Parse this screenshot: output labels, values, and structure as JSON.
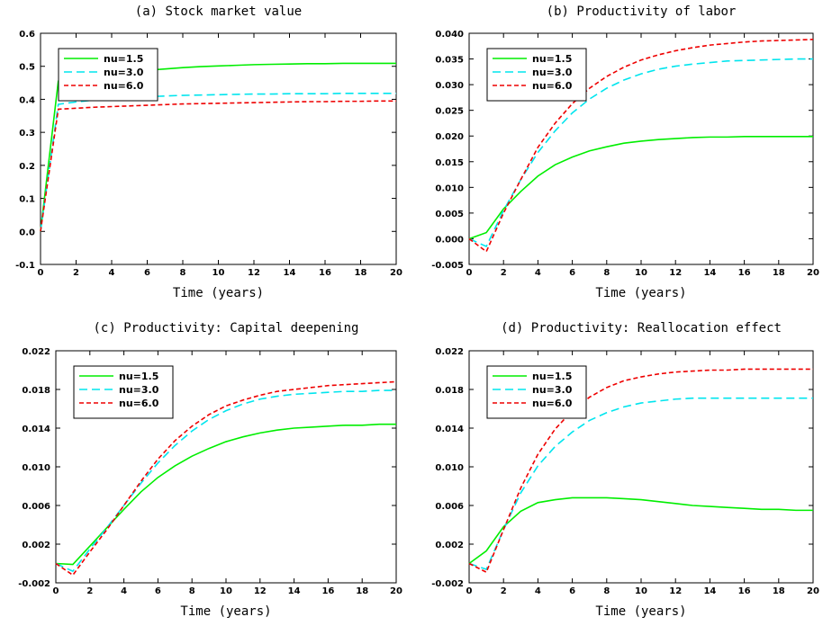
{
  "chart_data": [
    {
      "type": "line",
      "title": "(a) Stock market value",
      "xlabel": "Time (years)",
      "ylabel": "",
      "xlim": [
        0,
        20
      ],
      "ylim": [
        -0.1,
        0.6
      ],
      "xticks": [
        0,
        2,
        4,
        6,
        8,
        10,
        12,
        14,
        16,
        18,
        20
      ],
      "xtick_labels": [
        "0",
        "2",
        "4",
        "6",
        "8",
        "10",
        "12",
        "14",
        "16",
        "18",
        "20"
      ],
      "yticks": [
        -0.1,
        0.0,
        0.1,
        0.2,
        0.3,
        0.4,
        0.5,
        0.6
      ],
      "ytick_labels": [
        "-0.1",
        "0.0",
        "0.1",
        "0.2",
        "0.3",
        "0.4",
        "0.5",
        "0.6"
      ],
      "grid": false,
      "legend_position": "top-left",
      "x": [
        0,
        1,
        2,
        3,
        4,
        5,
        6,
        7,
        8,
        9,
        10,
        11,
        12,
        13,
        14,
        15,
        16,
        17,
        18,
        19,
        20
      ],
      "series": [
        {
          "name": "nu=1.5",
          "color": "#00ee00",
          "dash": "solid",
          "values": [
            0.0,
            0.455,
            0.462,
            0.469,
            0.476,
            0.482,
            0.488,
            0.492,
            0.496,
            0.499,
            0.501,
            0.503,
            0.505,
            0.506,
            0.507,
            0.508,
            0.508,
            0.509,
            0.509,
            0.509,
            0.509
          ]
        },
        {
          "name": "nu=3.0",
          "color": "#00e5ee",
          "dash": "long",
          "values": [
            0.0,
            0.385,
            0.392,
            0.398,
            0.402,
            0.405,
            0.408,
            0.41,
            0.412,
            0.413,
            0.414,
            0.415,
            0.416,
            0.416,
            0.417,
            0.417,
            0.417,
            0.418,
            0.418,
            0.418,
            0.418
          ]
        },
        {
          "name": "nu=6.0",
          "color": "#ee0000",
          "dash": "short",
          "values": [
            0.0,
            0.37,
            0.373,
            0.376,
            0.378,
            0.38,
            0.382,
            0.384,
            0.386,
            0.387,
            0.388,
            0.389,
            0.39,
            0.391,
            0.392,
            0.393,
            0.393,
            0.394,
            0.394,
            0.395,
            0.395
          ]
        }
      ]
    },
    {
      "type": "line",
      "title": "(b) Productivity of labor",
      "xlabel": "Time (years)",
      "ylabel": "",
      "xlim": [
        0,
        20
      ],
      "ylim": [
        -0.005,
        0.04
      ],
      "xticks": [
        0,
        2,
        4,
        6,
        8,
        10,
        12,
        14,
        16,
        18,
        20
      ],
      "xtick_labels": [
        "0",
        "2",
        "4",
        "6",
        "8",
        "10",
        "12",
        "14",
        "16",
        "18",
        "20"
      ],
      "yticks": [
        -0.005,
        0.0,
        0.005,
        0.01,
        0.015,
        0.02,
        0.025,
        0.03,
        0.035,
        0.04
      ],
      "ytick_labels": [
        "-0.005",
        "0.000",
        "0.005",
        "0.010",
        "0.015",
        "0.020",
        "0.025",
        "0.030",
        "0.035",
        "0.040"
      ],
      "grid": false,
      "legend_position": "top-left",
      "x": [
        0,
        1,
        2,
        3,
        4,
        5,
        6,
        7,
        8,
        9,
        10,
        11,
        12,
        13,
        14,
        15,
        16,
        17,
        18,
        19,
        20
      ],
      "series": [
        {
          "name": "nu=1.5",
          "color": "#00ee00",
          "dash": "solid",
          "values": [
            0.0,
            0.0012,
            0.0058,
            0.0092,
            0.0122,
            0.0144,
            0.0159,
            0.0171,
            0.0179,
            0.0186,
            0.019,
            0.0193,
            0.0195,
            0.0197,
            0.0198,
            0.0198,
            0.0199,
            0.0199,
            0.0199,
            0.0199,
            0.0199
          ]
        },
        {
          "name": "nu=3.0",
          "color": "#00e5ee",
          "dash": "long",
          "values": [
            0.0,
            -0.0015,
            0.0055,
            0.0115,
            0.0168,
            0.021,
            0.0245,
            0.0272,
            0.0293,
            0.0309,
            0.0321,
            0.033,
            0.0336,
            0.034,
            0.0343,
            0.0346,
            0.0347,
            0.0348,
            0.0349,
            0.035,
            0.035
          ]
        },
        {
          "name": "nu=6.0",
          "color": "#ee0000",
          "dash": "short",
          "values": [
            0.0,
            -0.0025,
            0.005,
            0.0115,
            0.0178,
            0.0225,
            0.0263,
            0.0293,
            0.0316,
            0.0334,
            0.0348,
            0.0358,
            0.0366,
            0.0372,
            0.0377,
            0.038,
            0.0383,
            0.0385,
            0.0386,
            0.0387,
            0.0388
          ]
        }
      ]
    },
    {
      "type": "line",
      "title": "(c) Productivity: Capital deepening",
      "xlabel": "Time (years)",
      "ylabel": "",
      "xlim": [
        0,
        20
      ],
      "ylim": [
        -0.002,
        0.022
      ],
      "xticks": [
        0,
        2,
        4,
        6,
        8,
        10,
        12,
        14,
        16,
        18,
        20
      ],
      "xtick_labels": [
        "0",
        "2",
        "4",
        "6",
        "8",
        "10",
        "12",
        "14",
        "16",
        "18",
        "20"
      ],
      "yticks": [
        -0.002,
        0.002,
        0.006,
        0.01,
        0.014,
        0.018,
        0.022
      ],
      "ytick_labels": [
        "-0.002",
        "0.002",
        "0.006",
        "0.010",
        "0.014",
        "0.018",
        "0.022"
      ],
      "grid": false,
      "legend_position": "top-left",
      "x": [
        0,
        1,
        2,
        3,
        4,
        5,
        6,
        7,
        8,
        9,
        10,
        11,
        12,
        13,
        14,
        15,
        16,
        17,
        18,
        19,
        20
      ],
      "series": [
        {
          "name": "nu=1.5",
          "color": "#00ee00",
          "dash": "solid",
          "values": [
            0.0,
            -0.0001,
            0.0018,
            0.0037,
            0.0056,
            0.0074,
            0.0089,
            0.0101,
            0.0111,
            0.0119,
            0.0126,
            0.0131,
            0.0135,
            0.0138,
            0.014,
            0.0141,
            0.0142,
            0.0143,
            0.0143,
            0.0144,
            0.0144
          ]
        },
        {
          "name": "nu=3.0",
          "color": "#00e5ee",
          "dash": "long",
          "values": [
            0.0,
            -0.0008,
            0.0015,
            0.0037,
            0.006,
            0.0083,
            0.0104,
            0.0122,
            0.0137,
            0.0149,
            0.0158,
            0.0165,
            0.017,
            0.0173,
            0.0175,
            0.0176,
            0.0177,
            0.0178,
            0.0178,
            0.0179,
            0.0179
          ]
        },
        {
          "name": "nu=6.0",
          "color": "#ee0000",
          "dash": "short",
          "values": [
            0.0,
            -0.0012,
            0.0012,
            0.0035,
            0.006,
            0.0085,
            0.0108,
            0.0127,
            0.0142,
            0.0154,
            0.0163,
            0.0169,
            0.0174,
            0.0178,
            0.018,
            0.0182,
            0.0184,
            0.0185,
            0.0186,
            0.0187,
            0.0188
          ]
        }
      ]
    },
    {
      "type": "line",
      "title": "(d) Productivity: Reallocation effect",
      "xlabel": "Time (years)",
      "ylabel": "",
      "xlim": [
        0,
        20
      ],
      "ylim": [
        -0.002,
        0.022
      ],
      "xticks": [
        0,
        2,
        4,
        6,
        8,
        10,
        12,
        14,
        16,
        18,
        20
      ],
      "xtick_labels": [
        "0",
        "2",
        "4",
        "6",
        "8",
        "10",
        "12",
        "14",
        "16",
        "18",
        "20"
      ],
      "yticks": [
        -0.002,
        0.002,
        0.006,
        0.01,
        0.014,
        0.018,
        0.022
      ],
      "ytick_labels": [
        "-0.002",
        "0.002",
        "0.006",
        "0.010",
        "0.014",
        "0.018",
        "0.022"
      ],
      "grid": false,
      "legend_position": "top-left",
      "x": [
        0,
        1,
        2,
        3,
        4,
        5,
        6,
        7,
        8,
        9,
        10,
        11,
        12,
        13,
        14,
        15,
        16,
        17,
        18,
        19,
        20
      ],
      "series": [
        {
          "name": "nu=1.5",
          "color": "#00ee00",
          "dash": "solid",
          "values": [
            0.0,
            0.0013,
            0.0038,
            0.0054,
            0.0063,
            0.0066,
            0.0068,
            0.0068,
            0.0068,
            0.0067,
            0.0066,
            0.0064,
            0.0062,
            0.006,
            0.0059,
            0.0058,
            0.0057,
            0.0056,
            0.0056,
            0.0055,
            0.0055
          ]
        },
        {
          "name": "nu=3.0",
          "color": "#00e5ee",
          "dash": "long",
          "values": [
            0.0,
            -0.0006,
            0.0035,
            0.0073,
            0.0101,
            0.0121,
            0.0136,
            0.0148,
            0.0156,
            0.0162,
            0.0166,
            0.0168,
            0.017,
            0.0171,
            0.0171,
            0.0171,
            0.0171,
            0.0171,
            0.0171,
            0.0171,
            0.0171
          ]
        },
        {
          "name": "nu=6.0",
          "color": "#ee0000",
          "dash": "short",
          "values": [
            0.0,
            -0.0009,
            0.0035,
            0.0078,
            0.0113,
            0.0139,
            0.0158,
            0.0172,
            0.0182,
            0.0189,
            0.0193,
            0.0196,
            0.0198,
            0.0199,
            0.02,
            0.02,
            0.0201,
            0.0201,
            0.0201,
            0.0201,
            0.0201
          ]
        }
      ]
    }
  ]
}
